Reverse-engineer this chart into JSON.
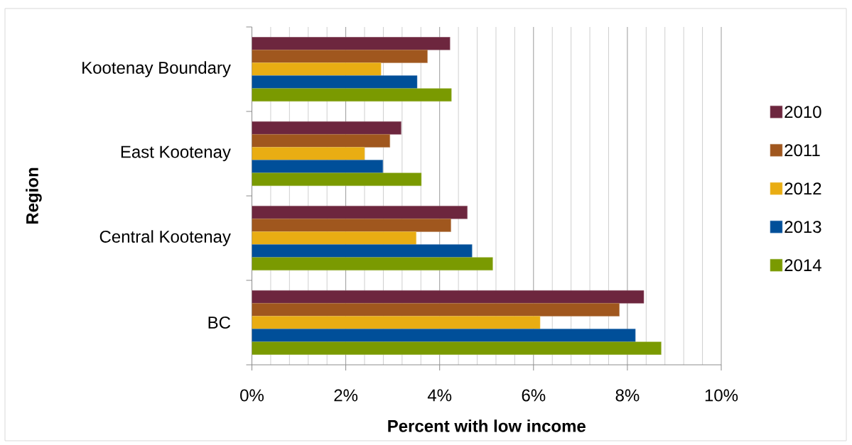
{
  "chart_data": {
    "type": "bar",
    "orientation": "horizontal",
    "xlabel": "Percent with low income",
    "ylabel": "Region",
    "categories": [
      "Kootenay Boundary",
      "East Kootenay",
      "Central Kootenay",
      "BC"
    ],
    "series": [
      {
        "name": "2010",
        "color": "#6d263e",
        "values": [
          4.22,
          3.18,
          4.59,
          8.35
        ]
      },
      {
        "name": "2011",
        "color": "#a0571e",
        "values": [
          3.74,
          2.94,
          4.24,
          7.83
        ]
      },
      {
        "name": "2012",
        "color": "#e9ad13",
        "values": [
          2.75,
          2.4,
          3.5,
          6.14
        ]
      },
      {
        "name": "2013",
        "color": "#004f99",
        "values": [
          3.52,
          2.79,
          4.69,
          8.17
        ]
      },
      {
        "name": "2014",
        "color": "#7a9a01",
        "values": [
          4.25,
          3.61,
          5.13,
          8.72
        ]
      }
    ],
    "xlim": [
      0,
      10
    ],
    "xticks": [
      {
        "value": 0,
        "label": "0%"
      },
      {
        "value": 0.4,
        "label": null
      },
      {
        "value": 0.8,
        "label": null
      },
      {
        "value": 1.2,
        "label": null
      },
      {
        "value": 1.6,
        "label": null
      },
      {
        "value": 2,
        "label": "2%"
      },
      {
        "value": 2.4,
        "label": null
      },
      {
        "value": 2.8,
        "label": null
      },
      {
        "value": 3.2,
        "label": null
      },
      {
        "value": 3.6,
        "label": null
      },
      {
        "value": 4,
        "label": "4%"
      },
      {
        "value": 4.4,
        "label": null
      },
      {
        "value": 4.8,
        "label": null
      },
      {
        "value": 5.2,
        "label": null
      },
      {
        "value": 5.6,
        "label": null
      },
      {
        "value": 6,
        "label": "6%"
      },
      {
        "value": 6.4,
        "label": null
      },
      {
        "value": 6.8,
        "label": null
      },
      {
        "value": 7.2,
        "label": null
      },
      {
        "value": 7.6,
        "label": null
      },
      {
        "value": 8,
        "label": "8%"
      },
      {
        "value": 8.4,
        "label": null
      },
      {
        "value": 8.8,
        "label": null
      },
      {
        "value": 9.2,
        "label": null
      },
      {
        "value": 9.6,
        "label": null
      },
      {
        "value": 10,
        "label": "10%"
      }
    ],
    "grid": "x",
    "legend": "right"
  }
}
